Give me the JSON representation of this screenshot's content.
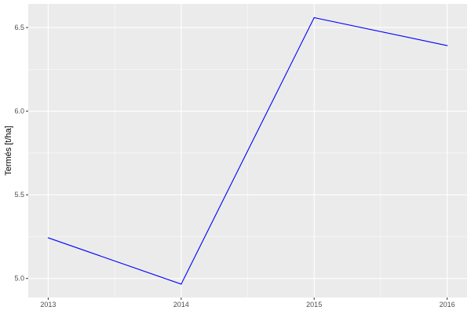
{
  "chart_data": {
    "type": "line",
    "title": "",
    "xlabel": "",
    "ylabel": "Termés [t/ha]",
    "x": [
      2013,
      2014,
      2015,
      2016
    ],
    "series": [
      {
        "values": [
          5.243,
          4.966,
          6.559,
          6.392
        ],
        "color": "#0000ff"
      }
    ],
    "xlim": [
      2012.85,
      2016.15
    ],
    "ylim": [
      4.886,
      6.641
    ],
    "xticks": [
      "2013",
      "2014",
      "2015",
      "2016"
    ],
    "yticks": [
      "5.0",
      "5.5",
      "6.0",
      "6.5"
    ],
    "grid": true,
    "panel_background": "#ebebeb"
  }
}
